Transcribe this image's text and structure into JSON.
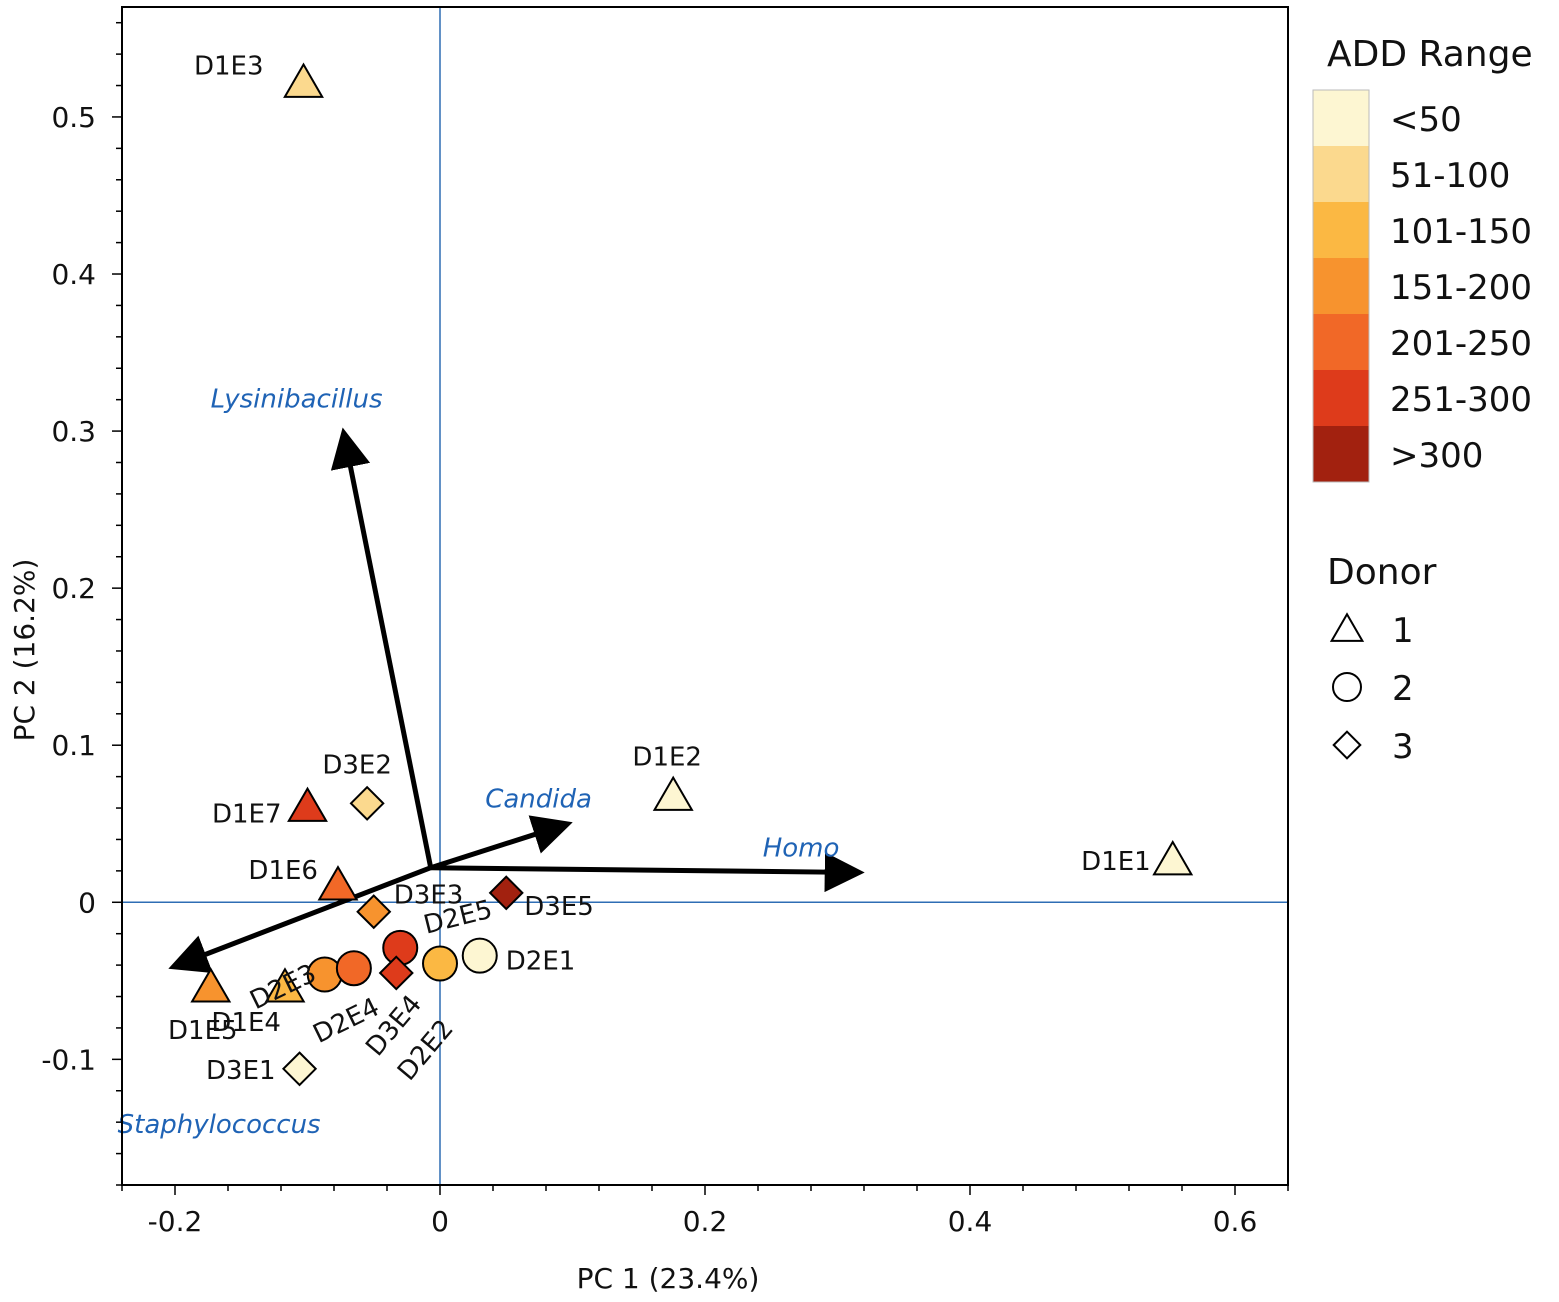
{
  "chart_data": {
    "type": "scatter",
    "subtype": "pca-biplot",
    "xlabel": "PC 1 (23.4%)",
    "ylabel": "PC 2 (16.2%)",
    "xlim": [
      -0.24,
      0.64
    ],
    "ylim": [
      -0.18,
      0.57
    ],
    "xticks": [
      -0.2,
      0,
      0.2,
      0.4,
      0.6
    ],
    "xtick_labels": [
      "-0.2",
      "0",
      "0.2",
      "0.4",
      "0.6"
    ],
    "yticks": [
      -0.1,
      0,
      0.1,
      0.2,
      0.3,
      0.4,
      0.5
    ],
    "ytick_labels": [
      "-0.1",
      "0",
      "0.1",
      "0.2",
      "0.3",
      "0.4",
      "0.5"
    ],
    "reference_lines": {
      "x": 0,
      "y": 0,
      "color": "#2e6db4"
    },
    "add_ranges": [
      {
        "label": "<50",
        "color": "#fdf6d2"
      },
      {
        "label": "51-100",
        "color": "#fbd98e"
      },
      {
        "label": "101-150",
        "color": "#fbb843"
      },
      {
        "label": "151-200",
        "color": "#f7932e"
      },
      {
        "label": "201-250",
        "color": "#f16827"
      },
      {
        "label": "251-300",
        "color": "#de3b1b"
      },
      {
        "label": ">300",
        "color": "#a2210f"
      }
    ],
    "donors": [
      {
        "label": "1",
        "shape": "triangle"
      },
      {
        "label": "2",
        "shape": "circle"
      },
      {
        "label": "3",
        "shape": "diamond"
      }
    ],
    "points": [
      {
        "id": "D1E1",
        "donor": "1",
        "add": 0,
        "x": 0.553,
        "y": 0.027
      },
      {
        "id": "D1E2",
        "donor": "1",
        "add": 0,
        "x": 0.176,
        "y": 0.068
      },
      {
        "id": "D1E3",
        "donor": "1",
        "add": 1,
        "x": -0.103,
        "y": 0.522
      },
      {
        "id": "D1E4",
        "donor": "1",
        "add": 2,
        "x": -0.117,
        "y": -0.054
      },
      {
        "id": "D1E5",
        "donor": "1",
        "add": 3,
        "x": -0.173,
        "y": -0.054
      },
      {
        "id": "D1E6",
        "donor": "1",
        "add": 4,
        "x": -0.077,
        "y": 0.011
      },
      {
        "id": "D1E7",
        "donor": "1",
        "add": 5,
        "x": -0.1,
        "y": 0.061
      },
      {
        "id": "D2E1",
        "donor": "2",
        "add": 0,
        "x": 0.03,
        "y": -0.034
      },
      {
        "id": "D2E2",
        "donor": "2",
        "add": 2,
        "x": 0,
        "y": -0.039
      },
      {
        "id": "D2E3",
        "donor": "2",
        "add": 3,
        "x": -0.087,
        "y": -0.046
      },
      {
        "id": "D2E4",
        "donor": "2",
        "add": 4,
        "x": -0.065,
        "y": -0.042
      },
      {
        "id": "D2E5",
        "donor": "2",
        "add": 5,
        "x": -0.03,
        "y": -0.029
      },
      {
        "id": "D3E1",
        "donor": "3",
        "add": 0,
        "x": -0.106,
        "y": -0.106
      },
      {
        "id": "D3E2",
        "donor": "3",
        "add": 1,
        "x": -0.055,
        "y": 0.063
      },
      {
        "id": "D3E3",
        "donor": "3",
        "add": 3,
        "x": -0.05,
        "y": -0.006
      },
      {
        "id": "D3E4",
        "donor": "3",
        "add": 5,
        "x": -0.033,
        "y": -0.045
      },
      {
        "id": "D3E5",
        "donor": "3",
        "add": 6,
        "x": 0.05,
        "y": 0.006
      }
    ],
    "loading_origin": [
      -0.007,
      0.022
    ],
    "loadings": [
      {
        "name": "Lysinibacillus",
        "x": -0.072,
        "y": 0.296
      },
      {
        "name": "Candida",
        "x": 0.093,
        "y": 0.049
      },
      {
        "name": "Homo",
        "x": 0.313,
        "y": 0.019
      },
      {
        "name": "Staphylococcus",
        "x": -0.198,
        "y": -0.04
      }
    ],
    "legend": {
      "add_title": "ADD Range",
      "donor_title": "Donor",
      "placement": "right"
    }
  }
}
